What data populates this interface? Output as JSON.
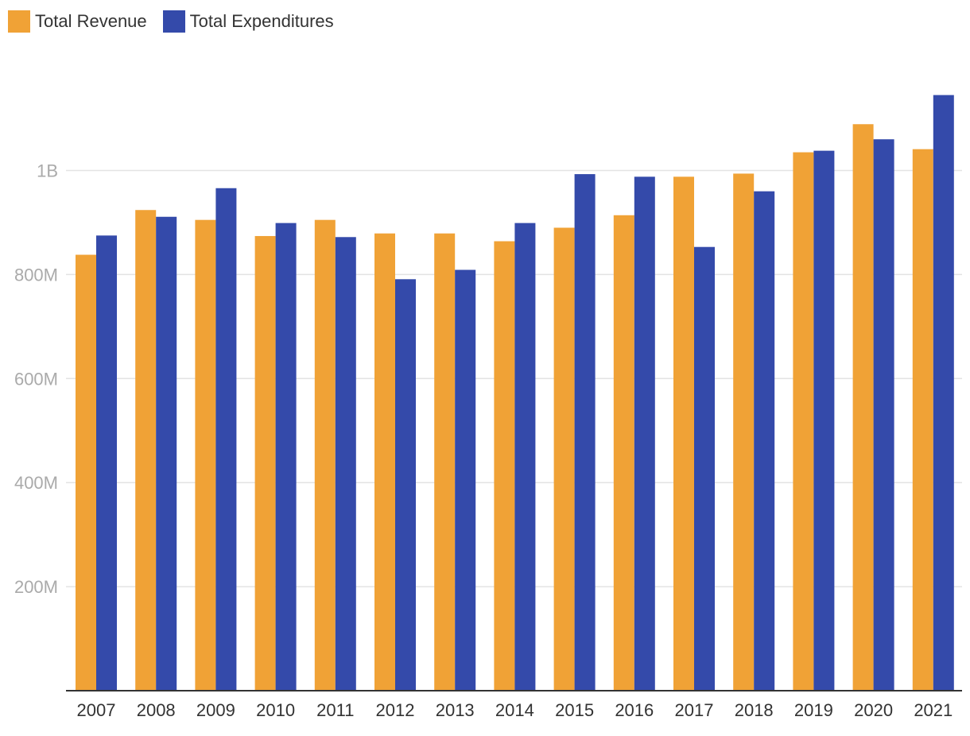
{
  "chart_data": {
    "type": "bar",
    "title": "",
    "xlabel": "",
    "ylabel": "",
    "categories": [
      "2007",
      "2008",
      "2009",
      "2010",
      "2011",
      "2012",
      "2013",
      "2014",
      "2015",
      "2016",
      "2017",
      "2018",
      "2019",
      "2020",
      "2021"
    ],
    "series": [
      {
        "name": "Total Revenue",
        "color": "#f0a236",
        "values": [
          838,
          924,
          905,
          874,
          905,
          879,
          879,
          864,
          890,
          914,
          988,
          994,
          1035,
          1089,
          1041
        ]
      },
      {
        "name": "Total Expenditures",
        "color": "#344aaa",
        "values": [
          875,
          911,
          966,
          899,
          872,
          791,
          809,
          899,
          993,
          988,
          853,
          960,
          1038,
          1060,
          1145
        ]
      }
    ],
    "unit_note": "values in millions",
    "ylim": [
      0,
      1200
    ],
    "yticks": [
      200,
      400,
      600,
      800,
      1000
    ],
    "ytick_labels": [
      "200M",
      "400M",
      "600M",
      "800M",
      "1B"
    ],
    "grid": true,
    "legend_position": "top-left"
  }
}
